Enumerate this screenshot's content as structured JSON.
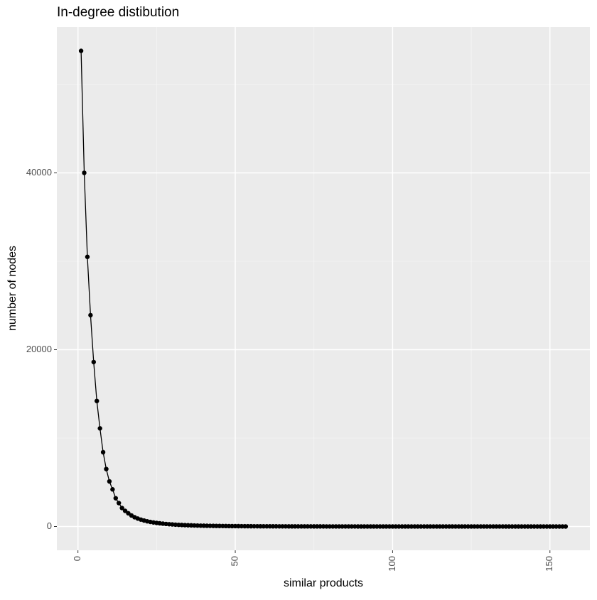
{
  "chart_data": {
    "type": "line",
    "title": "In-degree distibution",
    "x_label": "similar products",
    "y_label": "number of nodes",
    "x": [
      1,
      2,
      3,
      4,
      5,
      6,
      7,
      8,
      9,
      10,
      11,
      12,
      13,
      14,
      15,
      16,
      17,
      18,
      19,
      20,
      21,
      22,
      23,
      24,
      25,
      26,
      27,
      28,
      29,
      30,
      31,
      32,
      33,
      34,
      35,
      36,
      37,
      38,
      39,
      40,
      41,
      42,
      43,
      44,
      45,
      46,
      47,
      48,
      49,
      50,
      51,
      52,
      53,
      54,
      55,
      56,
      57,
      58,
      59,
      60,
      61,
      62,
      63,
      64,
      65,
      66,
      67,
      68,
      69,
      70,
      71,
      72,
      73,
      74,
      75,
      76,
      77,
      78,
      79,
      80,
      81,
      82,
      83,
      84,
      85,
      86,
      87,
      88,
      89,
      90,
      91,
      92,
      93,
      94,
      95,
      96,
      97,
      98,
      99,
      100,
      101,
      102,
      103,
      104,
      105,
      106,
      107,
      108,
      109,
      110,
      111,
      112,
      113,
      114,
      115,
      116,
      117,
      118,
      119,
      120,
      121,
      122,
      123,
      124,
      125,
      126,
      127,
      128,
      129,
      130,
      131,
      132,
      133,
      134,
      135,
      136,
      137,
      138,
      139,
      140,
      141,
      142,
      143,
      144,
      145,
      146,
      147,
      148,
      149,
      150,
      151,
      152,
      153,
      154,
      155
    ],
    "values": [
      53800,
      40000,
      30500,
      23900,
      18600,
      14200,
      11100,
      8400,
      6500,
      5100,
      4200,
      3200,
      2650,
      2090,
      1770,
      1500,
      1250,
      1050,
      900,
      780,
      680,
      590,
      520,
      460,
      410,
      365,
      325,
      290,
      260,
      235,
      210,
      190,
      172,
      156,
      142,
      130,
      118,
      108,
      99,
      91,
      84,
      77,
      71,
      66,
      61,
      57,
      53,
      49,
      46,
      43,
      40,
      37,
      35,
      33,
      31,
      29,
      27,
      26,
      24,
      23,
      22,
      21,
      20,
      19,
      18,
      17,
      16,
      15,
      15,
      14,
      13,
      13,
      12,
      12,
      11,
      11,
      10,
      10,
      9,
      9,
      9,
      8,
      8,
      8,
      7,
      7,
      7,
      7,
      6,
      6,
      6,
      6,
      6,
      5,
      5,
      5,
      5,
      5,
      5,
      4,
      4,
      4,
      4,
      4,
      4,
      4,
      4,
      3,
      3,
      3,
      3,
      3,
      3,
      3,
      3,
      3,
      3,
      3,
      3,
      2,
      2,
      2,
      2,
      2,
      2,
      2,
      2,
      2,
      2,
      2,
      2,
      2,
      2,
      2,
      2,
      1,
      1,
      1,
      1,
      1,
      1,
      1,
      1,
      1,
      1,
      1,
      1,
      1,
      1,
      1,
      1,
      1,
      1,
      1,
      1
    ],
    "color": "#000000",
    "xlim": [
      -6.7,
      162.7
    ],
    "xticks": [
      0,
      50,
      100,
      150
    ],
    "xminor": [
      25,
      75,
      125
    ],
    "ylim": [
      -2690,
      56500
    ],
    "yticks": [
      0,
      20000,
      40000
    ],
    "yminor": [
      10000,
      30000,
      50000
    ],
    "grid": true
  }
}
